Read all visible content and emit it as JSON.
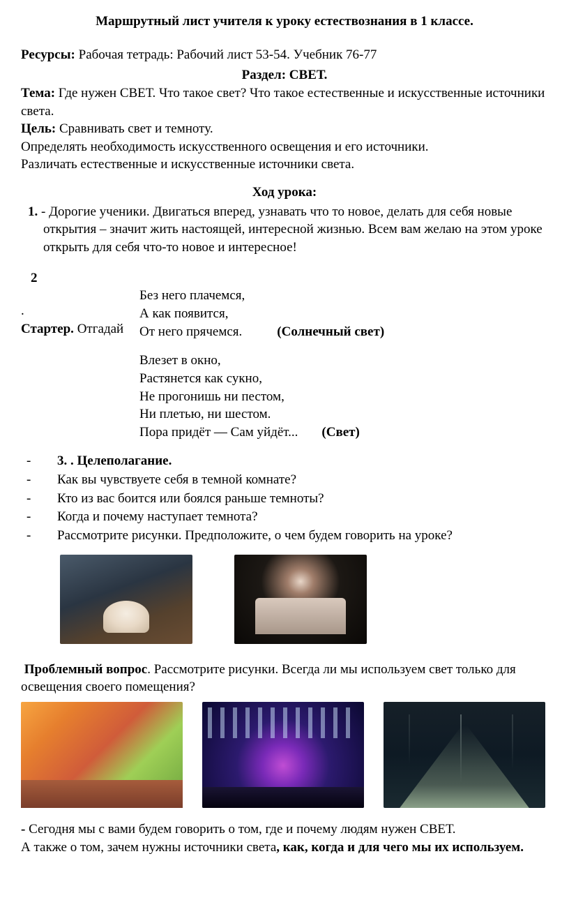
{
  "title": "Маршрутный лист учителя к уроку естествознания в 1 классе.",
  "resources": {
    "label": "Ресурсы:",
    "text": " Рабочая тетрадь: Рабочий лист 53-54. Учебник  76-77"
  },
  "section": {
    "label": "Раздел:  ",
    "value": "СВЕТ."
  },
  "topic": {
    "label": "Тема:",
    "text": "      Где нужен СВЕТ. Что такое свет? Что такое естественные и искусственные источники света."
  },
  "goal": {
    "label": "Цель:",
    "text": "    Сравнивать свет и темноту."
  },
  "goalLines": [
    "Определять необходимость искусственного освещения и его источники.",
    "Различать естественные и искусственные источники света."
  ],
  "lessonHead": "Ход урока:",
  "item1": {
    "num": "1.",
    "text": " - Дорогие ученики. Двигаться вперед, узнавать что то новое, делать для себя новые открытия – значит жить настоящей, интересной жизнью.  Всем вам желаю на этом уроке открыть для себя что-то новое и интересное!"
  },
  "item2": {
    "num": "2",
    "dot": ".",
    "starterLabelBold": "Стартер.",
    "starterLabelRest": " Отгадай",
    "riddle1": {
      "l1": "Без него плачемся,",
      "l2": "А как появится,",
      "l3": "От него прячемся.",
      "answer": "(Солнечный свет)"
    },
    "riddle2": {
      "l1": "Влезет в окно,",
      "l2": "Растянется как сукно,",
      "l3": "Не прогонишь ни пестом,",
      "l4": "Ни плетью, ни шестом.",
      "l5": "Пора придёт — Сам уйдёт...",
      "answer": "(Свет)"
    }
  },
  "item3": {
    "head": "3.  . Целеполагание.",
    "bullets": [
      "Как вы чувствуете себя в темной комнате?",
      "Кто из вас боится или боялся раньше темноты?",
      "Когда и почему наступает темнота?",
      "Рассмотрите рисунки. Предположите, о чем будем говорить на уроке?"
    ]
  },
  "problem": {
    "label": "Проблемный вопрос",
    "text": ". Рассмотрите рисунки. Всегда ли мы используем свет только для освещения своего помещения?"
  },
  "closing": {
    "dash": "- ",
    "l1a": "Сегодня мы с вами будем говорить о том, где и почему людям нужен СВЕТ.",
    "l2a": "А также о том,  зачем нужны  источники света",
    "l2b": ", как, когда и для чего мы их используем."
  }
}
